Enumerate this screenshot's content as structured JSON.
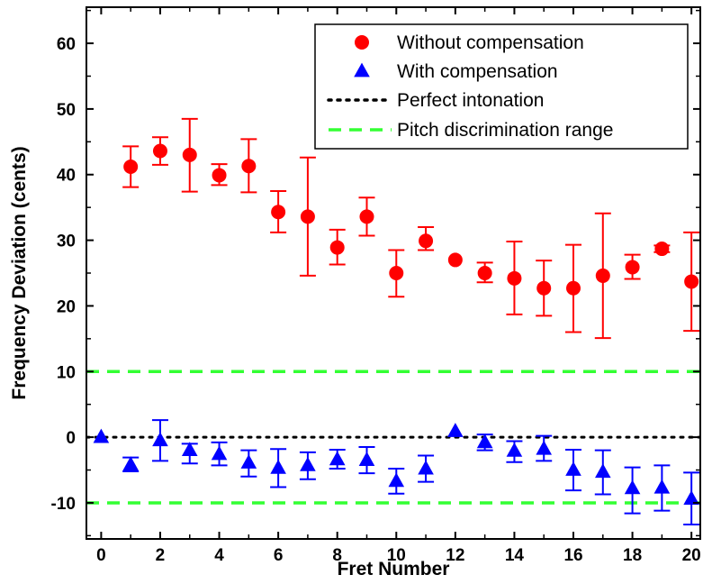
{
  "chart_data": {
    "type": "scatter",
    "xlabel": "Fret Number",
    "ylabel": "Frequency Deviation (cents)",
    "xlim": [
      -0.5,
      20.3
    ],
    "ylim": [
      -15.5,
      65.5
    ],
    "xticks": [
      0,
      2,
      4,
      6,
      8,
      10,
      12,
      14,
      16,
      18,
      20
    ],
    "yticks": [
      -10,
      0,
      10,
      20,
      30,
      40,
      50,
      60
    ],
    "grid": false,
    "legend_position": "top-right",
    "series": [
      {
        "name": "Without compensation",
        "marker": "circle",
        "color": "#ff0000",
        "x": [
          1,
          2,
          3,
          4,
          5,
          6,
          7,
          8,
          9,
          10,
          11,
          12,
          13,
          14,
          15,
          16,
          17,
          18,
          19,
          20
        ],
        "y": [
          41.2,
          43.6,
          43.0,
          39.9,
          41.3,
          34.3,
          33.6,
          28.9,
          33.6,
          25.0,
          29.9,
          27.0,
          25.0,
          24.2,
          22.7,
          22.7,
          24.6,
          25.9,
          28.7,
          23.7
        ],
        "err_low": [
          38.1,
          41.5,
          37.4,
          38.4,
          37.3,
          31.2,
          24.6,
          26.3,
          30.7,
          21.4,
          28.5,
          27.0,
          23.6,
          18.7,
          18.5,
          16.0,
          15.1,
          24.1,
          28.2,
          16.2
        ],
        "err_high": [
          44.3,
          45.7,
          48.5,
          41.6,
          45.4,
          37.5,
          42.6,
          31.6,
          36.5,
          28.5,
          32.0,
          27.0,
          26.6,
          29.8,
          26.9,
          29.3,
          34.1,
          27.8,
          29.2,
          31.2
        ]
      },
      {
        "name": "With compensation",
        "marker": "triangle",
        "color": "#0000ff",
        "x": [
          0,
          1,
          2,
          3,
          4,
          5,
          6,
          7,
          8,
          9,
          10,
          11,
          12,
          13,
          14,
          15,
          16,
          17,
          18,
          19,
          20
        ],
        "y": [
          0.0,
          -4.2,
          -0.5,
          -2.0,
          -2.6,
          -3.9,
          -4.7,
          -4.3,
          -3.4,
          -3.5,
          -6.7,
          -4.8,
          0.9,
          -0.8,
          -2.1,
          -1.8,
          -5.0,
          -5.3,
          -7.8,
          -7.7,
          -9.4
        ],
        "err_low": [
          0.0,
          -5.2,
          -3.6,
          -4.0,
          -4.3,
          -6.0,
          -7.6,
          -6.4,
          -4.8,
          -5.5,
          -8.6,
          -6.8,
          0.9,
          -2.0,
          -3.8,
          -3.6,
          -8.1,
          -8.7,
          -11.6,
          -11.2,
          -13.3
        ],
        "err_high": [
          0.0,
          -3.1,
          2.6,
          -1.0,
          -0.8,
          -2.0,
          -1.8,
          -2.3,
          -1.9,
          -1.5,
          -4.8,
          -2.8,
          0.9,
          0.4,
          -0.6,
          0.2,
          -1.9,
          -2.0,
          -4.6,
          -4.3,
          -5.4
        ]
      }
    ],
    "reference_lines": [
      {
        "name": "Perfect intonation",
        "y": 0,
        "style": "dotted",
        "color": "#000000"
      },
      {
        "name": "Pitch discrimination range",
        "y": [
          10,
          -10
        ],
        "style": "dashed",
        "color": "#33ff33"
      }
    ]
  }
}
